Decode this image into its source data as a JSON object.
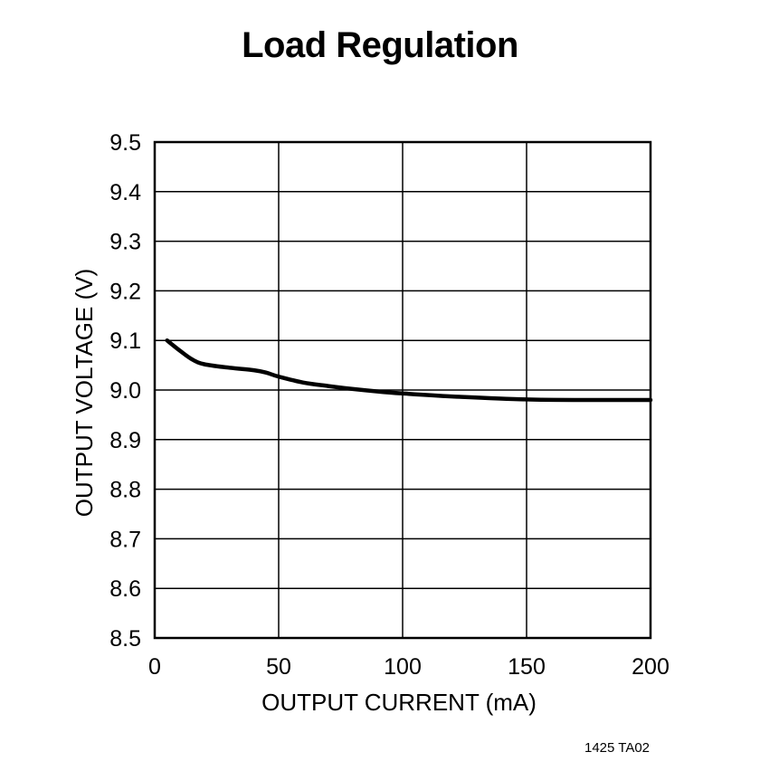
{
  "chart_data": {
    "type": "line",
    "title": "Load Regulation",
    "xlabel": "OUTPUT CURRENT (mA)",
    "ylabel": "OUTPUT VOLTAGE (V)",
    "xlim": [
      0,
      200
    ],
    "ylim": [
      8.5,
      9.5
    ],
    "x_ticks": [
      0,
      50,
      100,
      150,
      200
    ],
    "y_ticks": [
      8.5,
      8.6,
      8.7,
      8.8,
      8.9,
      9.0,
      9.1,
      9.2,
      9.3,
      9.4,
      9.5
    ],
    "x_tick_labels": [
      "0",
      "50",
      "100",
      "150",
      "200"
    ],
    "y_tick_labels": [
      "8.5",
      "8.6",
      "8.7",
      "8.8",
      "8.9",
      "9.0",
      "9.1",
      "9.2",
      "9.3",
      "9.4",
      "9.5"
    ],
    "grid": true,
    "series": [
      {
        "x": [
          5,
          10,
          15,
          20,
          30,
          40,
          45,
          50,
          60,
          70,
          80,
          90,
          100,
          120,
          150,
          175,
          200
        ],
        "y": [
          9.1,
          9.08,
          9.062,
          9.052,
          9.045,
          9.04,
          9.035,
          9.027,
          9.015,
          9.008,
          9.002,
          8.997,
          8.993,
          8.987,
          8.981,
          8.98,
          8.98
        ]
      }
    ]
  },
  "footnote": "1425 TA02"
}
